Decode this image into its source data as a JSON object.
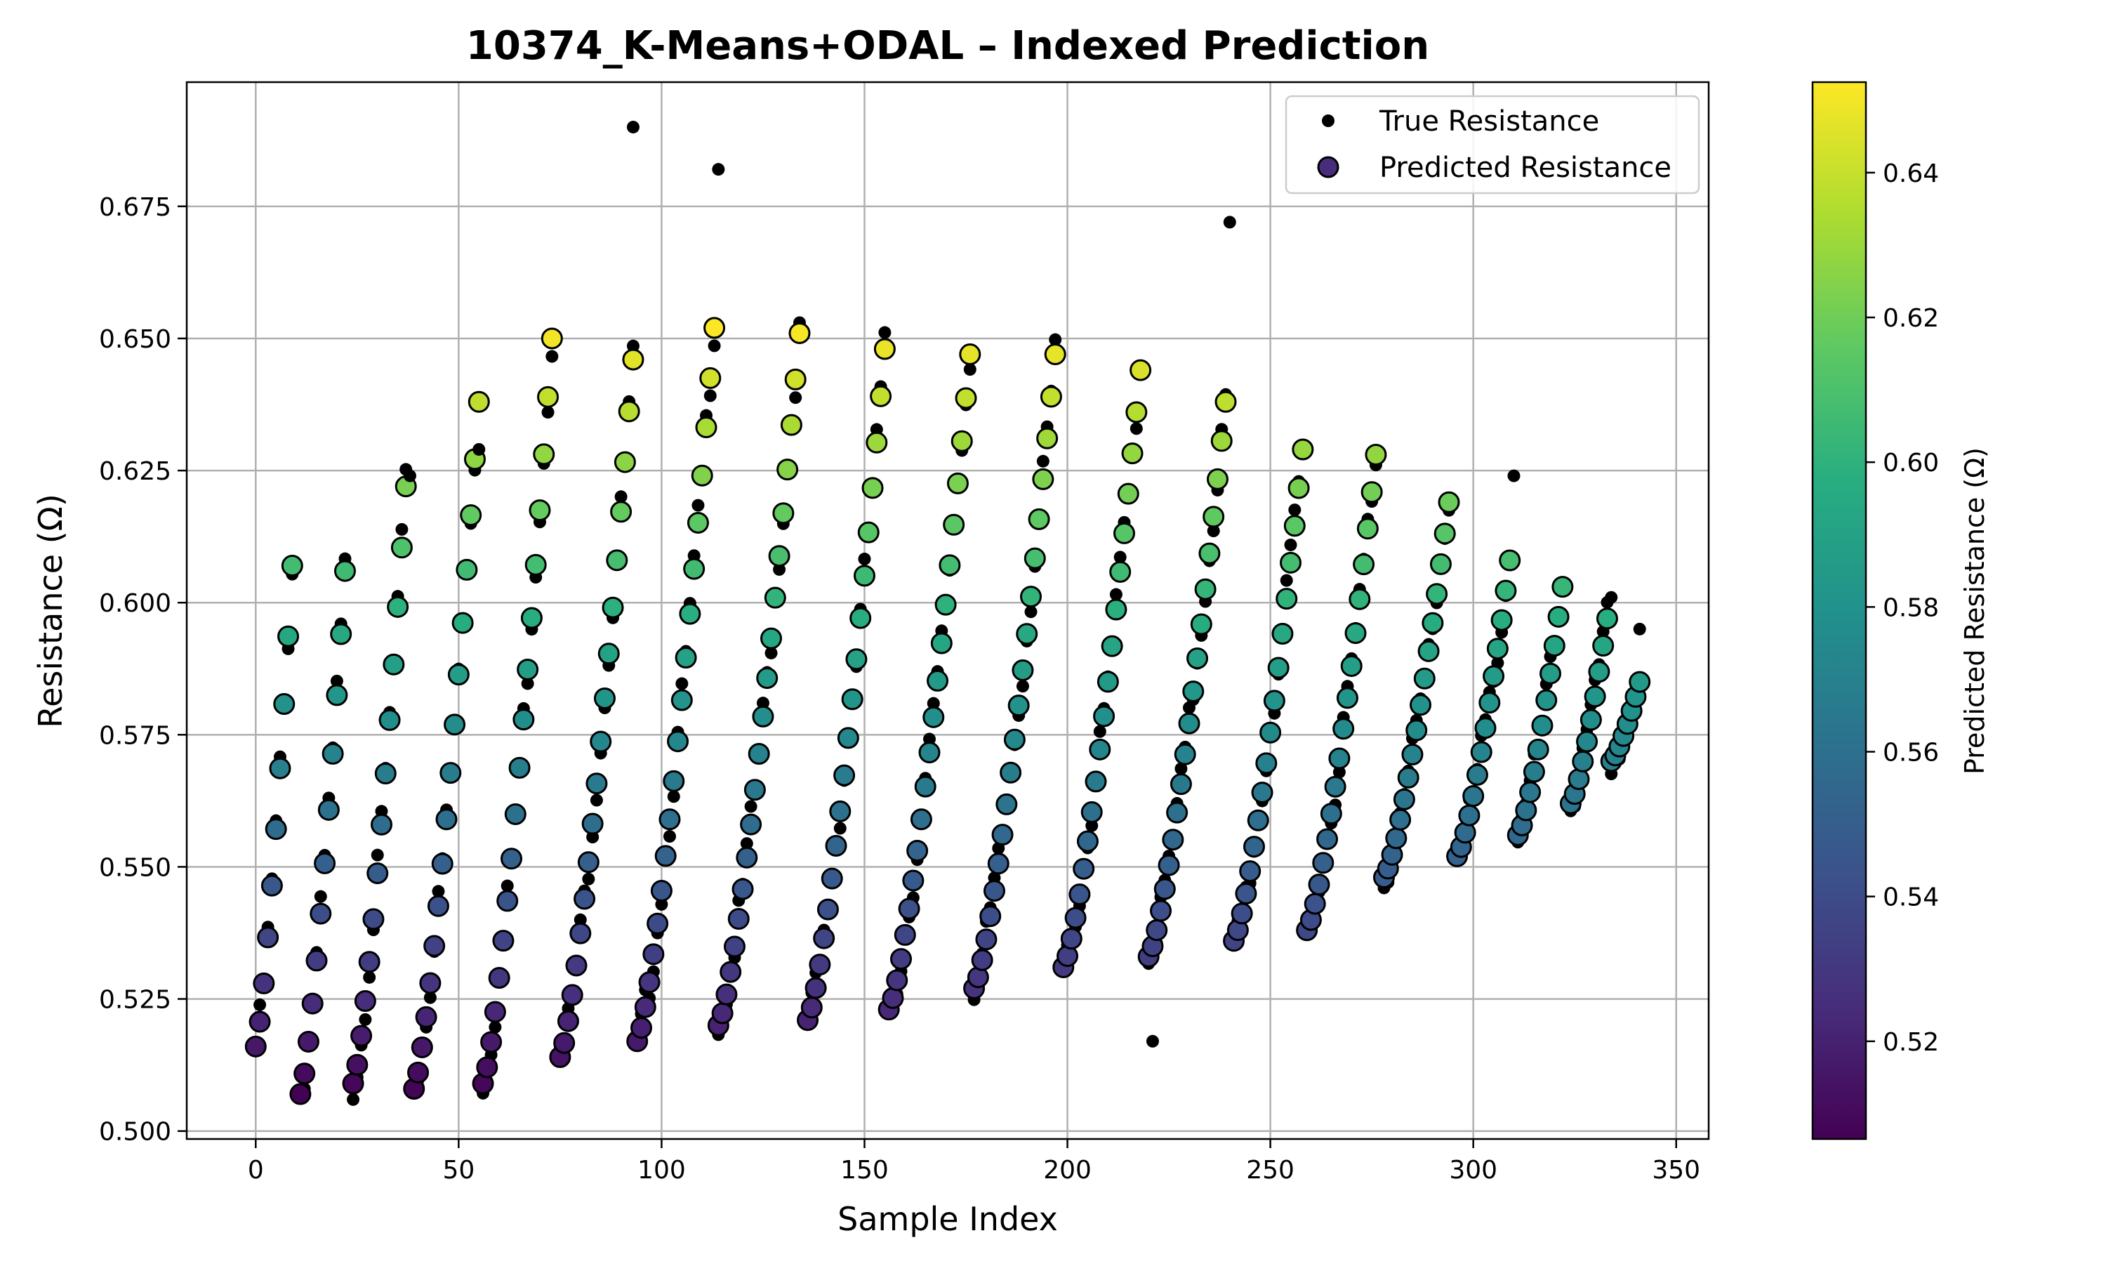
{
  "chart_data": {
    "type": "scatter",
    "title": "10374_K-Means+ODAL – Indexed Prediction",
    "xlabel": "Sample Index",
    "ylabel": "Resistance (Ω)",
    "xlim": [
      -17,
      358
    ],
    "ylim": [
      0.4985,
      0.6985
    ],
    "xticks": [
      0,
      50,
      100,
      150,
      200,
      250,
      300,
      350
    ],
    "yticks": [
      0.5,
      0.525,
      0.55,
      0.575,
      0.6,
      0.625,
      0.65,
      0.675
    ],
    "grid": true,
    "legend": {
      "location": "top-right",
      "entries": [
        "True Resistance",
        "Predicted Resistance"
      ]
    },
    "colorbar": {
      "label": "Predicted Resistance (Ω)",
      "colormap": "viridis",
      "range": [
        0.5065,
        0.6525
      ],
      "ticks": [
        0.52,
        0.54,
        0.56,
        0.58,
        0.6,
        0.62,
        0.64
      ]
    },
    "cycles": [
      {
        "start": 0,
        "y0": 0.516,
        "n": 10,
        "peak": 0.607
      },
      {
        "start": 11,
        "y0": 0.507,
        "n": 12,
        "peak": 0.606
      },
      {
        "start": 24,
        "y0": 0.509,
        "n": 14,
        "peak": 0.622
      },
      {
        "start": 39,
        "y0": 0.508,
        "n": 17,
        "peak": 0.638
      },
      {
        "start": 56,
        "y0": 0.509,
        "n": 18,
        "peak": 0.65
      },
      {
        "start": 75,
        "y0": 0.514,
        "n": 19,
        "peak": 0.646
      },
      {
        "start": 94,
        "y0": 0.517,
        "n": 20,
        "peak": 0.652
      },
      {
        "start": 114,
        "y0": 0.52,
        "n": 21,
        "peak": 0.651
      },
      {
        "start": 136,
        "y0": 0.521,
        "n": 20,
        "peak": 0.648
      },
      {
        "start": 156,
        "y0": 0.523,
        "n": 21,
        "peak": 0.647
      },
      {
        "start": 177,
        "y0": 0.527,
        "n": 21,
        "peak": 0.647
      },
      {
        "start": 199,
        "y0": 0.531,
        "n": 20,
        "peak": 0.644
      },
      {
        "start": 220,
        "y0": 0.533,
        "n": 20,
        "peak": 0.638
      },
      {
        "start": 241,
        "y0": 0.536,
        "n": 18,
        "peak": 0.629
      },
      {
        "start": 259,
        "y0": 0.538,
        "n": 18,
        "peak": 0.628
      },
      {
        "start": 278,
        "y0": 0.548,
        "n": 17,
        "peak": 0.619
      },
      {
        "start": 296,
        "y0": 0.552,
        "n": 14,
        "peak": 0.608
      },
      {
        "start": 311,
        "y0": 0.556,
        "n": 12,
        "peak": 0.603
      },
      {
        "start": 324,
        "y0": 0.562,
        "n": 10,
        "peak": 0.597
      },
      {
        "start": 334,
        "y0": 0.57,
        "n": 8,
        "peak": 0.585
      }
    ],
    "true_outliers": [
      {
        "x": 93,
        "y": 0.69
      },
      {
        "x": 114,
        "y": 0.682
      },
      {
        "x": 240,
        "y": 0.672
      },
      {
        "x": 221,
        "y": 0.517
      },
      {
        "x": 310,
        "y": 0.624
      },
      {
        "x": 38,
        "y": 0.624
      },
      {
        "x": 55,
        "y": 0.629
      },
      {
        "x": 334,
        "y": 0.601
      },
      {
        "x": 341,
        "y": 0.595
      }
    ]
  }
}
